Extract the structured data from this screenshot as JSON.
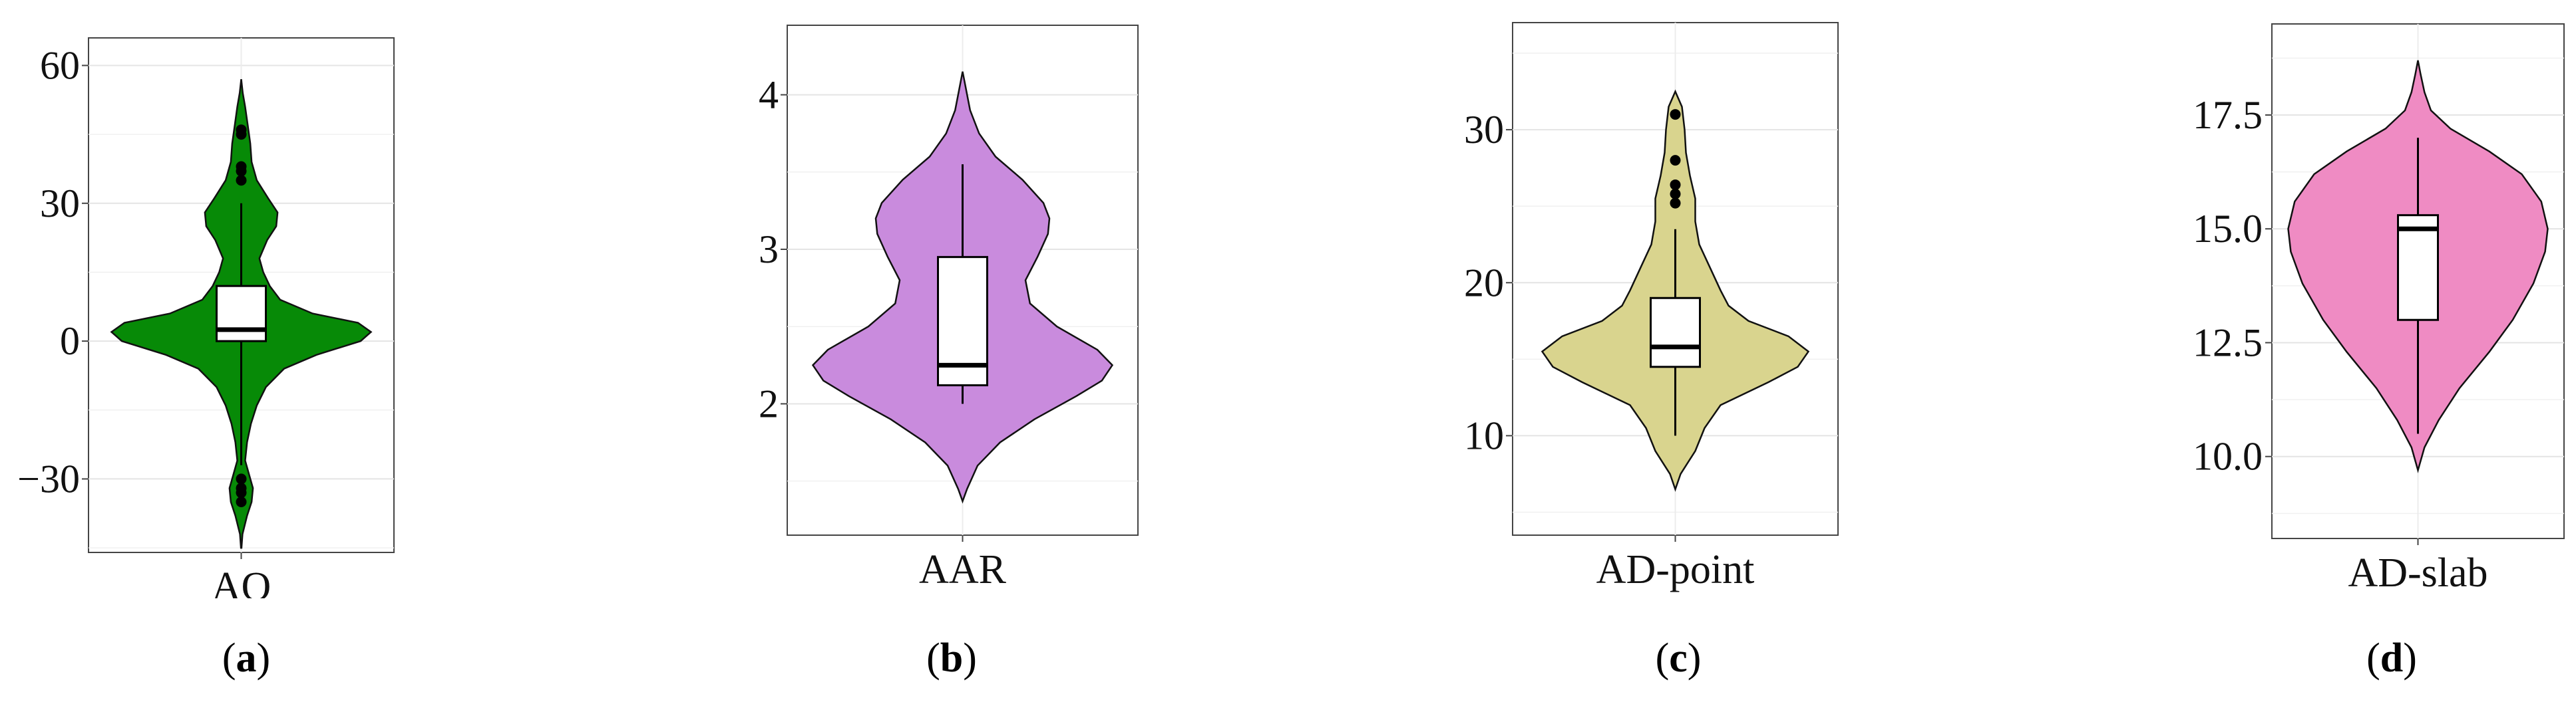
{
  "colors": {
    "AO": "#078a07",
    "AAR": "#c98bdd",
    "AD-point": "#d9d48e",
    "AD-slab": "#ef8bc3"
  },
  "captions": [
    "a",
    "b",
    "c",
    "d"
  ],
  "chart_data": [
    {
      "type": "violin",
      "category": "AO",
      "color": "#078a07",
      "ylim": [
        -46,
        66
      ],
      "yticks": [
        -30,
        0,
        30,
        60
      ],
      "grid": true,
      "box": {
        "q1": 0,
        "median": 2.5,
        "q3": 12,
        "whisker_low": -27,
        "whisker_high": 30
      },
      "outliers": [
        -30,
        -32,
        -33,
        -35,
        35,
        37,
        38,
        45,
        46
      ],
      "density": [
        [
          -45,
          0.002
        ],
        [
          -42,
          0.01
        ],
        [
          -38,
          0.045
        ],
        [
          -35,
          0.08
        ],
        [
          -32,
          0.09
        ],
        [
          -29,
          0.06
        ],
        [
          -26,
          0.03
        ],
        [
          -22,
          0.045
        ],
        [
          -18,
          0.075
        ],
        [
          -14,
          0.12
        ],
        [
          -10,
          0.19
        ],
        [
          -6,
          0.33
        ],
        [
          -3,
          0.58
        ],
        [
          0,
          0.92
        ],
        [
          2,
          1.0
        ],
        [
          4,
          0.9
        ],
        [
          6,
          0.55
        ],
        [
          9,
          0.3
        ],
        [
          12,
          0.22
        ],
        [
          15,
          0.17
        ],
        [
          18,
          0.14
        ],
        [
          22,
          0.2
        ],
        [
          25,
          0.27
        ],
        [
          28,
          0.28
        ],
        [
          31,
          0.21
        ],
        [
          35,
          0.12
        ],
        [
          39,
          0.08
        ],
        [
          43,
          0.07
        ],
        [
          47,
          0.05
        ],
        [
          51,
          0.03
        ],
        [
          54,
          0.012
        ],
        [
          57,
          0.0
        ]
      ]
    },
    {
      "type": "violin",
      "category": "AAR",
      "color": "#c98bdd",
      "ylim": [
        1.15,
        4.45
      ],
      "yticks": [
        2,
        3,
        4
      ],
      "grid": true,
      "box": {
        "q1": 2.12,
        "median": 2.25,
        "q3": 2.95,
        "whisker_low": 2.0,
        "whisker_high": 3.55
      },
      "outliers": [],
      "density": [
        [
          1.37,
          0.0
        ],
        [
          1.45,
          0.03
        ],
        [
          1.6,
          0.1
        ],
        [
          1.75,
          0.25
        ],
        [
          1.9,
          0.48
        ],
        [
          2.05,
          0.76
        ],
        [
          2.15,
          0.93
        ],
        [
          2.25,
          1.0
        ],
        [
          2.35,
          0.9
        ],
        [
          2.5,
          0.63
        ],
        [
          2.65,
          0.45
        ],
        [
          2.8,
          0.42
        ],
        [
          2.95,
          0.5
        ],
        [
          3.1,
          0.57
        ],
        [
          3.2,
          0.58
        ],
        [
          3.3,
          0.54
        ],
        [
          3.45,
          0.4
        ],
        [
          3.6,
          0.22
        ],
        [
          3.75,
          0.11
        ],
        [
          3.9,
          0.05
        ],
        [
          4.0,
          0.03
        ],
        [
          4.1,
          0.01
        ],
        [
          4.15,
          0.0
        ]
      ]
    },
    {
      "type": "violin",
      "category": "AD-point",
      "color": "#d9d48e",
      "ylim": [
        3.5,
        37
      ],
      "yticks": [
        10,
        20,
        30
      ],
      "grid": true,
      "box": {
        "q1": 14.5,
        "median": 15.8,
        "q3": 19,
        "whisker_low": 10,
        "whisker_high": 23.5
      },
      "outliers": [
        25.2,
        25.8,
        26.4,
        28,
        31
      ],
      "density": [
        [
          6.5,
          0.0
        ],
        [
          7.5,
          0.04
        ],
        [
          9,
          0.15
        ],
        [
          10.5,
          0.22
        ],
        [
          12,
          0.34
        ],
        [
          13.5,
          0.7
        ],
        [
          14.5,
          0.92
        ],
        [
          15.5,
          1.0
        ],
        [
          16.5,
          0.85
        ],
        [
          17.5,
          0.55
        ],
        [
          18.5,
          0.4
        ],
        [
          19.5,
          0.34
        ],
        [
          21,
          0.26
        ],
        [
          22.5,
          0.18
        ],
        [
          24,
          0.15
        ],
        [
          25.5,
          0.15
        ],
        [
          27,
          0.11
        ],
        [
          28.5,
          0.08
        ],
        [
          30,
          0.07
        ],
        [
          31.5,
          0.05
        ],
        [
          32.5,
          0.0
        ]
      ]
    },
    {
      "type": "violin",
      "category": "AD-slab",
      "color": "#ef8bc3",
      "ylim": [
        8.2,
        19.5
      ],
      "yticks": [
        10.0,
        12.5,
        15.0,
        17.5
      ],
      "grid": true,
      "box": {
        "q1": 13.0,
        "median": 15.0,
        "q3": 15.3,
        "whisker_low": 10.5,
        "whisker_high": 17.0
      },
      "outliers": [],
      "density": [
        [
          9.7,
          0.0
        ],
        [
          10.2,
          0.05
        ],
        [
          10.8,
          0.16
        ],
        [
          11.5,
          0.32
        ],
        [
          12.3,
          0.55
        ],
        [
          13.0,
          0.73
        ],
        [
          13.8,
          0.89
        ],
        [
          14.5,
          0.98
        ],
        [
          15.0,
          1.0
        ],
        [
          15.6,
          0.95
        ],
        [
          16.2,
          0.8
        ],
        [
          16.7,
          0.55
        ],
        [
          17.2,
          0.25
        ],
        [
          17.6,
          0.1
        ],
        [
          18.0,
          0.05
        ],
        [
          18.4,
          0.02
        ],
        [
          18.7,
          0.0
        ]
      ]
    }
  ]
}
